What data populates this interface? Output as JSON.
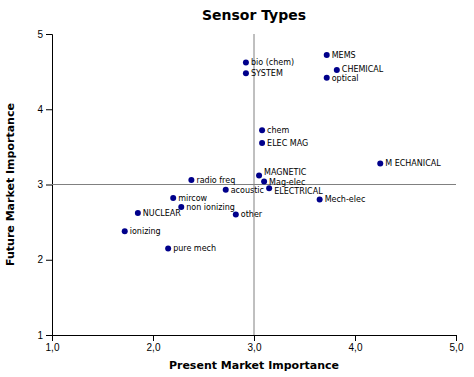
{
  "chart_data": {
    "type": "scatter",
    "title": "Sensor Types",
    "x_label": "Present Market Importance",
    "y_label": "Future Market Importance",
    "color": "#00008B",
    "grid": false,
    "xlim": [
      1.0,
      5.0
    ],
    "ylim": [
      1.0,
      5.0
    ],
    "xticks": [
      {
        "value": 1.0,
        "label": "1,0"
      },
      {
        "value": 2.0,
        "label": "2,0"
      },
      {
        "value": 3.0,
        "label": "3,0"
      },
      {
        "value": 4.0,
        "label": "4,0"
      },
      {
        "value": 5.0,
        "label": "5,0"
      }
    ],
    "yticks": [
      1,
      2,
      3,
      4,
      5
    ],
    "vline": 3.0,
    "hline": 3.0,
    "labels": [
      "bio (chem)",
      "SYSTEM",
      "MEMS",
      "CHEMICAL",
      "optical",
      "chem",
      "ELEC MAG",
      "M ECHANICAL",
      "MAGNETIC",
      "Mag-elec",
      "radio freq",
      "acoustic",
      "ELECTRICAL",
      "Mech-elec",
      "mircow",
      "non ionizing",
      "NUCLEAR",
      "other",
      "ionizing",
      "pure mech"
    ],
    "x": [
      2.92,
      2.92,
      3.72,
      3.82,
      3.72,
      3.08,
      3.08,
      4.25,
      3.05,
      3.1,
      2.38,
      2.72,
      3.15,
      3.65,
      2.2,
      2.28,
      1.85,
      2.82,
      1.72,
      2.15
    ],
    "values": [
      4.62,
      4.48,
      4.72,
      4.52,
      4.42,
      3.72,
      3.55,
      3.28,
      3.12,
      3.04,
      3.06,
      2.93,
      2.95,
      2.8,
      2.82,
      2.7,
      2.62,
      2.6,
      2.38,
      2.15
    ]
  }
}
